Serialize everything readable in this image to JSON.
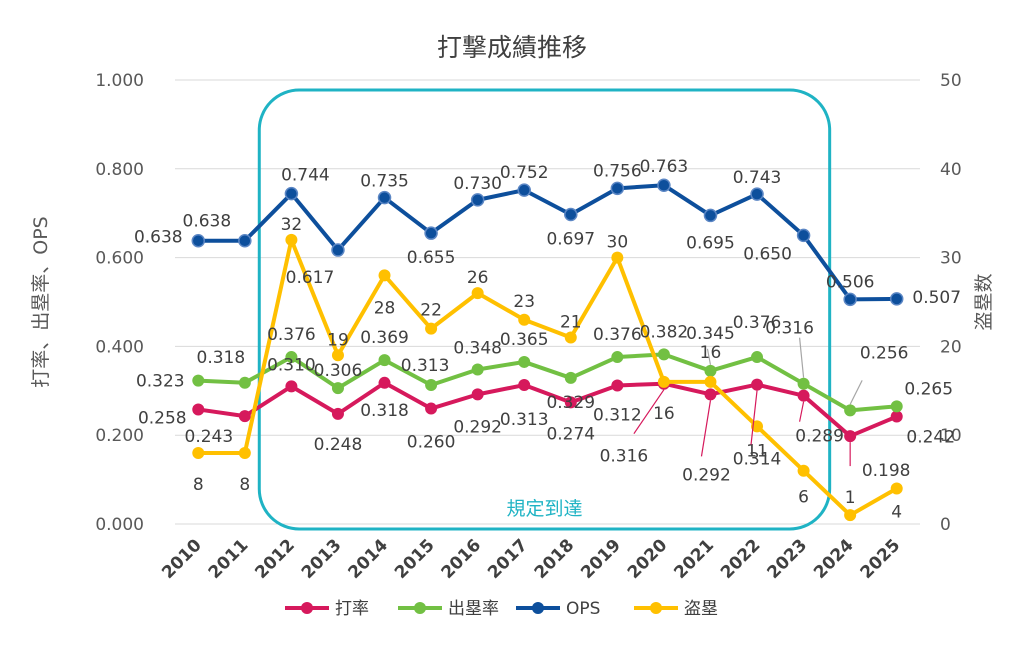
{
  "chart_data": {
    "type": "line",
    "title": "打撃成績推移",
    "categories": [
      "2010",
      "2011",
      "2012",
      "2013",
      "2014",
      "2015",
      "2016",
      "2017",
      "2018",
      "2019",
      "2020",
      "2021",
      "2022",
      "2023",
      "2024",
      "2025"
    ],
    "y_left": {
      "label": "打率、出塁率、OPS",
      "range": [
        0,
        1
      ],
      "ticks": [
        "0.000",
        "0.200",
        "0.400",
        "0.600",
        "0.800",
        "1.000"
      ]
    },
    "y_right": {
      "label": "盗塁数",
      "range": [
        0,
        50
      ],
      "ticks": [
        "0",
        "10",
        "20",
        "30",
        "40",
        "50"
      ]
    },
    "series": [
      {
        "name": "打率",
        "color": "#d6195c",
        "axis": "left",
        "values": [
          0.258,
          0.243,
          0.31,
          0.248,
          0.318,
          0.26,
          0.292,
          0.313,
          0.274,
          0.312,
          0.316,
          0.292,
          0.314,
          0.289,
          0.198,
          0.242
        ],
        "labels": [
          "0.258",
          "0.243",
          "0.310",
          "0.248",
          "0.318",
          "0.260",
          "0.292",
          "0.313",
          "0.274",
          "0.312",
          "0.316",
          "0.292",
          "0.314",
          "0.289",
          "0.198",
          "0.242"
        ]
      },
      {
        "name": "出塁率",
        "color": "#72c043",
        "axis": "left",
        "values": [
          0.323,
          0.318,
          0.376,
          0.306,
          0.369,
          0.313,
          0.348,
          0.365,
          0.329,
          0.376,
          0.382,
          0.345,
          0.376,
          0.316,
          0.256,
          0.265
        ],
        "labels": [
          "0.323",
          "0.318",
          "0.376",
          "0.306",
          "0.369",
          "0.313",
          "0.348",
          "0.365",
          "0.329",
          "0.376",
          "0.382",
          "0.345",
          "0.376",
          "0.316",
          "0.256",
          "0.265"
        ]
      },
      {
        "name": "OPS",
        "color": "#0d4f9c",
        "axis": "left",
        "values": [
          0.638,
          0.638,
          0.744,
          0.617,
          0.735,
          0.655,
          0.73,
          0.752,
          0.697,
          0.756,
          0.763,
          0.695,
          0.743,
          0.65,
          0.506,
          0.507
        ],
        "labels": [
          "0.638",
          "0.638",
          "0.744",
          "0.617",
          "0.735",
          "0.655",
          "0.730",
          "0.752",
          "0.697",
          "0.756",
          "0.763",
          "0.695",
          "0.743",
          "0.650",
          "0.506",
          "0.507"
        ]
      },
      {
        "name": "盗塁",
        "color": "#ffc000",
        "axis": "right",
        "values": [
          8,
          8,
          32,
          19,
          28,
          22,
          26,
          23,
          21,
          30,
          16,
          16,
          11,
          6,
          1,
          4
        ],
        "labels": [
          "8",
          "8",
          "32",
          "19",
          "28",
          "22",
          "26",
          "23",
          "21",
          "30",
          "16",
          "16",
          "11",
          "6",
          "1",
          "4"
        ]
      }
    ],
    "annotations": [
      {
        "text": "規定到達",
        "from": "2012",
        "to": "2023",
        "color": "#1fb3c4"
      }
    ],
    "legend": "bottom"
  }
}
